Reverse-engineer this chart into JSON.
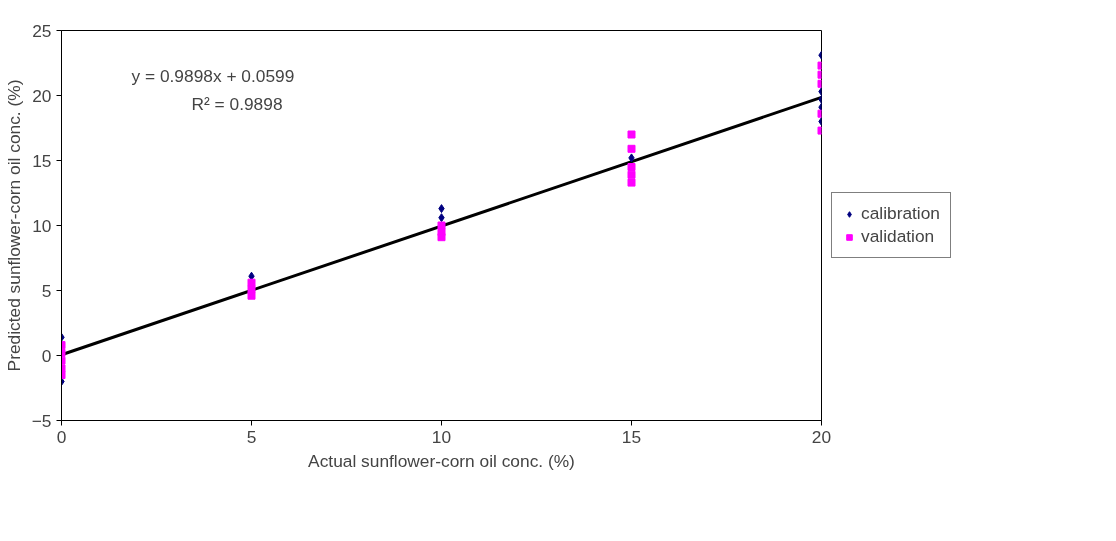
{
  "chart_data": {
    "type": "scatter",
    "xlabel": "Actual sunflower-corn oil conc. (%)",
    "ylabel": "Predicted sunflower-corn oil conc. (%)",
    "xlim": [
      0,
      20
    ],
    "ylim": [
      -5,
      25
    ],
    "xticks": [
      0,
      5,
      10,
      15,
      20
    ],
    "yticks": [
      -5,
      0,
      5,
      10,
      15,
      20,
      25
    ],
    "grid": false,
    "legend": "right",
    "annotations": [
      "y = 0.9898x + 0.0599",
      "R² = 0.9898"
    ],
    "series": [
      {
        "type": "line",
        "color": "#000000",
        "marker": "none",
        "x": [
          0,
          20
        ],
        "values": [
          0.06,
          19.86
        ]
      },
      {
        "name": "calibration",
        "color": "#000080",
        "marker": "diamond",
        "x": [
          0,
          0,
          5,
          10,
          10,
          15,
          20,
          20,
          20,
          20,
          20
        ],
        "values": [
          1.4,
          -2.0,
          6.1,
          11.3,
          10.6,
          15.2,
          23.1,
          20.3,
          19.7,
          19.1,
          18.0
        ]
      },
      {
        "name": "validation",
        "color": "#ff00ff",
        "marker": "square",
        "x": [
          0,
          0,
          0,
          0,
          0,
          5,
          5,
          5,
          10,
          10,
          10,
          15,
          15,
          15,
          15,
          15,
          20,
          20,
          20,
          20,
          20
        ],
        "values": [
          0.8,
          0.2,
          -0.4,
          -1.0,
          -1.5,
          5.6,
          5.1,
          4.6,
          10.0,
          9.5,
          9.1,
          17.0,
          15.9,
          14.5,
          13.9,
          13.3,
          22.3,
          21.6,
          20.9,
          18.6,
          17.3
        ]
      }
    ]
  }
}
